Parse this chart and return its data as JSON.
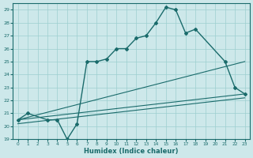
{
  "xlabel": "Humidex (Indice chaleur)",
  "bg_color": "#cde8ea",
  "line_color": "#1a6b6b",
  "grid_color": "#9dcfcf",
  "xlim": [
    -0.5,
    23.5
  ],
  "ylim": [
    19,
    29.5
  ],
  "yticks": [
    19,
    20,
    21,
    22,
    23,
    24,
    25,
    26,
    27,
    28,
    29
  ],
  "xticks": [
    0,
    1,
    2,
    3,
    4,
    5,
    6,
    7,
    8,
    9,
    10,
    11,
    12,
    13,
    14,
    15,
    16,
    17,
    18,
    19,
    20,
    21,
    22,
    23
  ],
  "series": [
    {
      "x": [
        0,
        1,
        3,
        4,
        5,
        6,
        7,
        8,
        9,
        10,
        11,
        12,
        13,
        14,
        15,
        16,
        17,
        18,
        21,
        22,
        23
      ],
      "y": [
        20.5,
        21.0,
        20.5,
        20.5,
        19.0,
        20.2,
        25.0,
        25.0,
        25.2,
        26.0,
        26.0,
        26.8,
        27.0,
        28.0,
        29.2,
        29.0,
        27.2,
        27.5,
        25.0,
        23.0,
        22.5
      ],
      "marker": "D",
      "markersize": 2.0,
      "linewidth": 1.0
    },
    {
      "x": [
        0,
        23
      ],
      "y": [
        20.5,
        25.0
      ],
      "marker": null,
      "linewidth": 0.8
    },
    {
      "x": [
        0,
        23
      ],
      "y": [
        20.5,
        22.5
      ],
      "marker": null,
      "linewidth": 0.8
    },
    {
      "x": [
        0,
        23
      ],
      "y": [
        20.2,
        22.2
      ],
      "marker": null,
      "linewidth": 0.8
    }
  ]
}
